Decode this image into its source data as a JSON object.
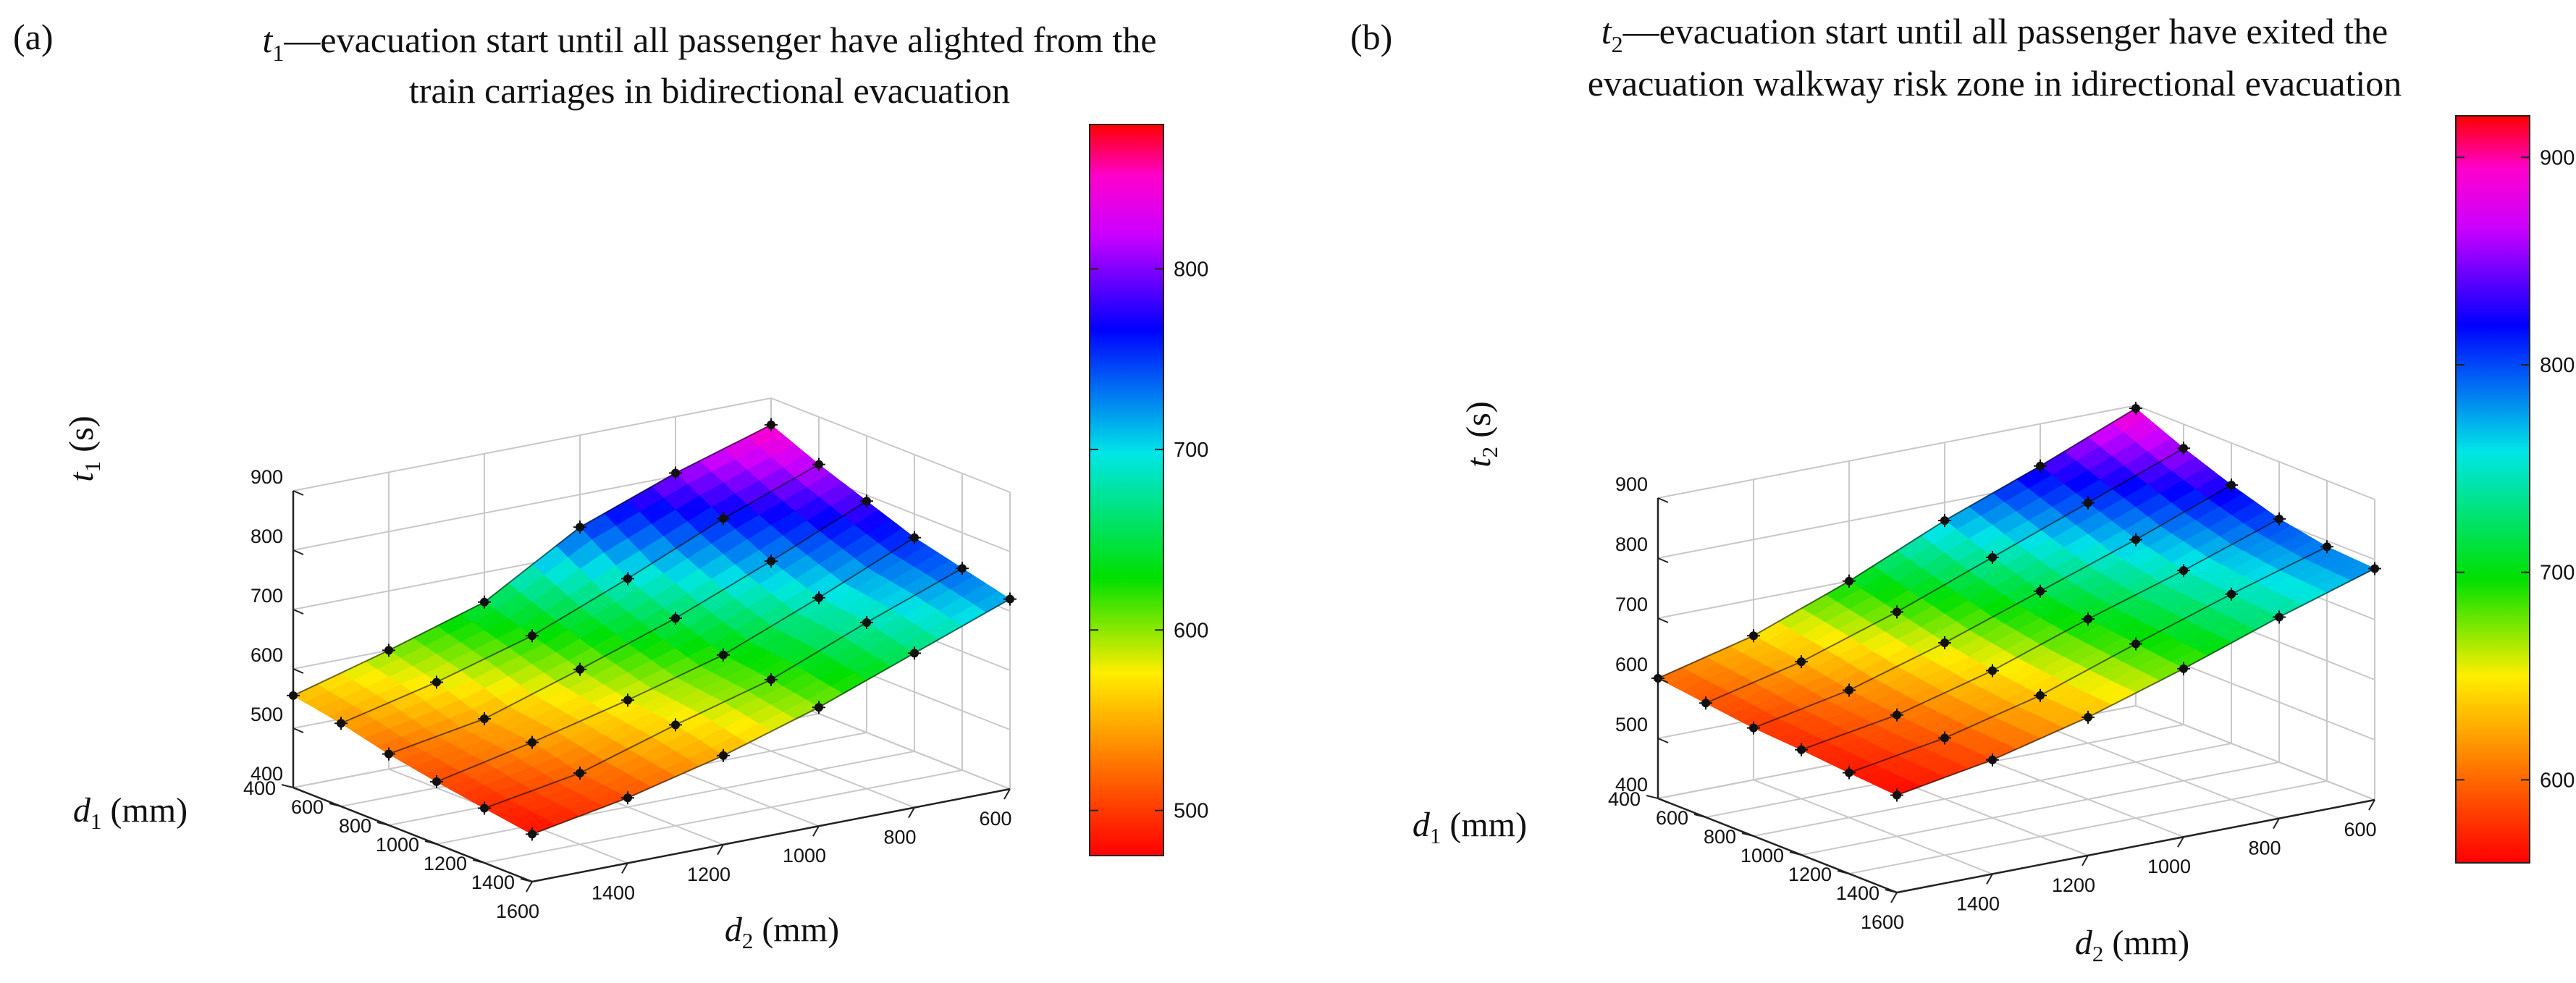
{
  "figure": {
    "description_label": "Two 3D surface plots of evacuation time"
  },
  "chart_data": [
    {
      "type": "surface3d",
      "panel_label": "(a)",
      "title_var": "t",
      "title_sub": "1",
      "title_line1": "—evacuation start until all passenger have alighted from the",
      "title_line2": "train carriages in bidirectional evacuation",
      "zlabel_var": "t",
      "zlabel_sub": "1",
      "zlabel_unit": " (s)",
      "xlabel_var": "d",
      "xlabel_sub": "2",
      "xlabel_unit": " (mm)",
      "ylabel_var": "d",
      "ylabel_sub": "1",
      "ylabel_unit": " (mm)",
      "x_axis_name": "d2 (mm)",
      "y_axis_name": "d1 (mm)",
      "z_axis_name": "t1 (s)",
      "xlim": [
        600,
        1600
      ],
      "ylim": [
        400,
        1400
      ],
      "zlim": [
        400,
        900
      ],
      "xticks": [
        "600",
        "800",
        "1000",
        "1200",
        "1400",
        "1600"
      ],
      "yticks": [
        "400",
        "600",
        "800",
        "1000",
        "1200",
        "1400"
      ],
      "zticks": [
        "400",
        "500",
        "600",
        "700",
        "800",
        "900"
      ],
      "colorbar": {
        "min": 475,
        "max": 880,
        "ticks": [
          "500",
          "600",
          "700",
          "800"
        ],
        "tick_values": [
          500,
          600,
          700,
          800
        ]
      },
      "d2_values": [
        1600,
        1400,
        1200,
        1000,
        800,
        600
      ],
      "d1_values": [
        400,
        600,
        800,
        1000,
        1200,
        1400
      ],
      "z_values": [
        [
          555,
          600,
          650,
          745,
          805,
          855
        ],
        [
          540,
          578,
          625,
          690,
          760,
          820
        ],
        [
          520,
          548,
          600,
          655,
          720,
          790
        ],
        [
          505,
          540,
          580,
          625,
          690,
          760
        ],
        [
          492,
          520,
          570,
          615,
          680,
          740
        ],
        [
          480,
          510,
          550,
          600,
          660,
          720
        ]
      ]
    },
    {
      "type": "surface3d",
      "panel_label": "(b)",
      "title_var": "t",
      "title_sub": "2",
      "title_line1": "—evacuation start until all passenger have exited the",
      "title_line2": "evacuation walkway risk zone in idirectional evacuation",
      "zlabel_var": "t",
      "zlabel_sub": "2",
      "zlabel_unit": " (s)",
      "xlabel_var": "d",
      "xlabel_sub": "2",
      "xlabel_unit": " (mm)",
      "ylabel_var": "d",
      "ylabel_sub": "1",
      "ylabel_unit": " (mm)",
      "x_axis_name": "d2 (mm)",
      "y_axis_name": "d1 (mm)",
      "z_axis_name": "t2 (s)",
      "xlim": [
        600,
        1600
      ],
      "ylim": [
        400,
        1400
      ],
      "zlim": [
        400,
        900
      ],
      "xticks": [
        "600",
        "800",
        "1000",
        "1200",
        "1400",
        "1600"
      ],
      "yticks": [
        "400",
        "600",
        "800",
        "1000",
        "1200",
        "1400"
      ],
      "zticks": [
        "400",
        "500",
        "600",
        "700",
        "800",
        "900"
      ],
      "colorbar": {
        "min": 560,
        "max": 920,
        "ticks": [
          "600",
          "700",
          "800",
          "900"
        ],
        "tick_values": [
          600,
          700,
          800,
          900
        ]
      },
      "d2_values": [
        1600,
        1400,
        1200,
        1000,
        800,
        600
      ],
      "d1_values": [
        400,
        600,
        800,
        1000,
        1200,
        1400
      ],
      "z_values": [
        [
          600,
          640,
          700,
          770,
          830,
          895
        ],
        [
          590,
          628,
          680,
          740,
          800,
          860
        ],
        [
          580,
          612,
          660,
          715,
          770,
          830
        ],
        [
          575,
          602,
          645,
          700,
          750,
          805
        ],
        [
          568,
          595,
          635,
          690,
          742,
          790
        ],
        [
          562,
          590,
          630,
          680,
          735,
          785
        ]
      ]
    }
  ]
}
